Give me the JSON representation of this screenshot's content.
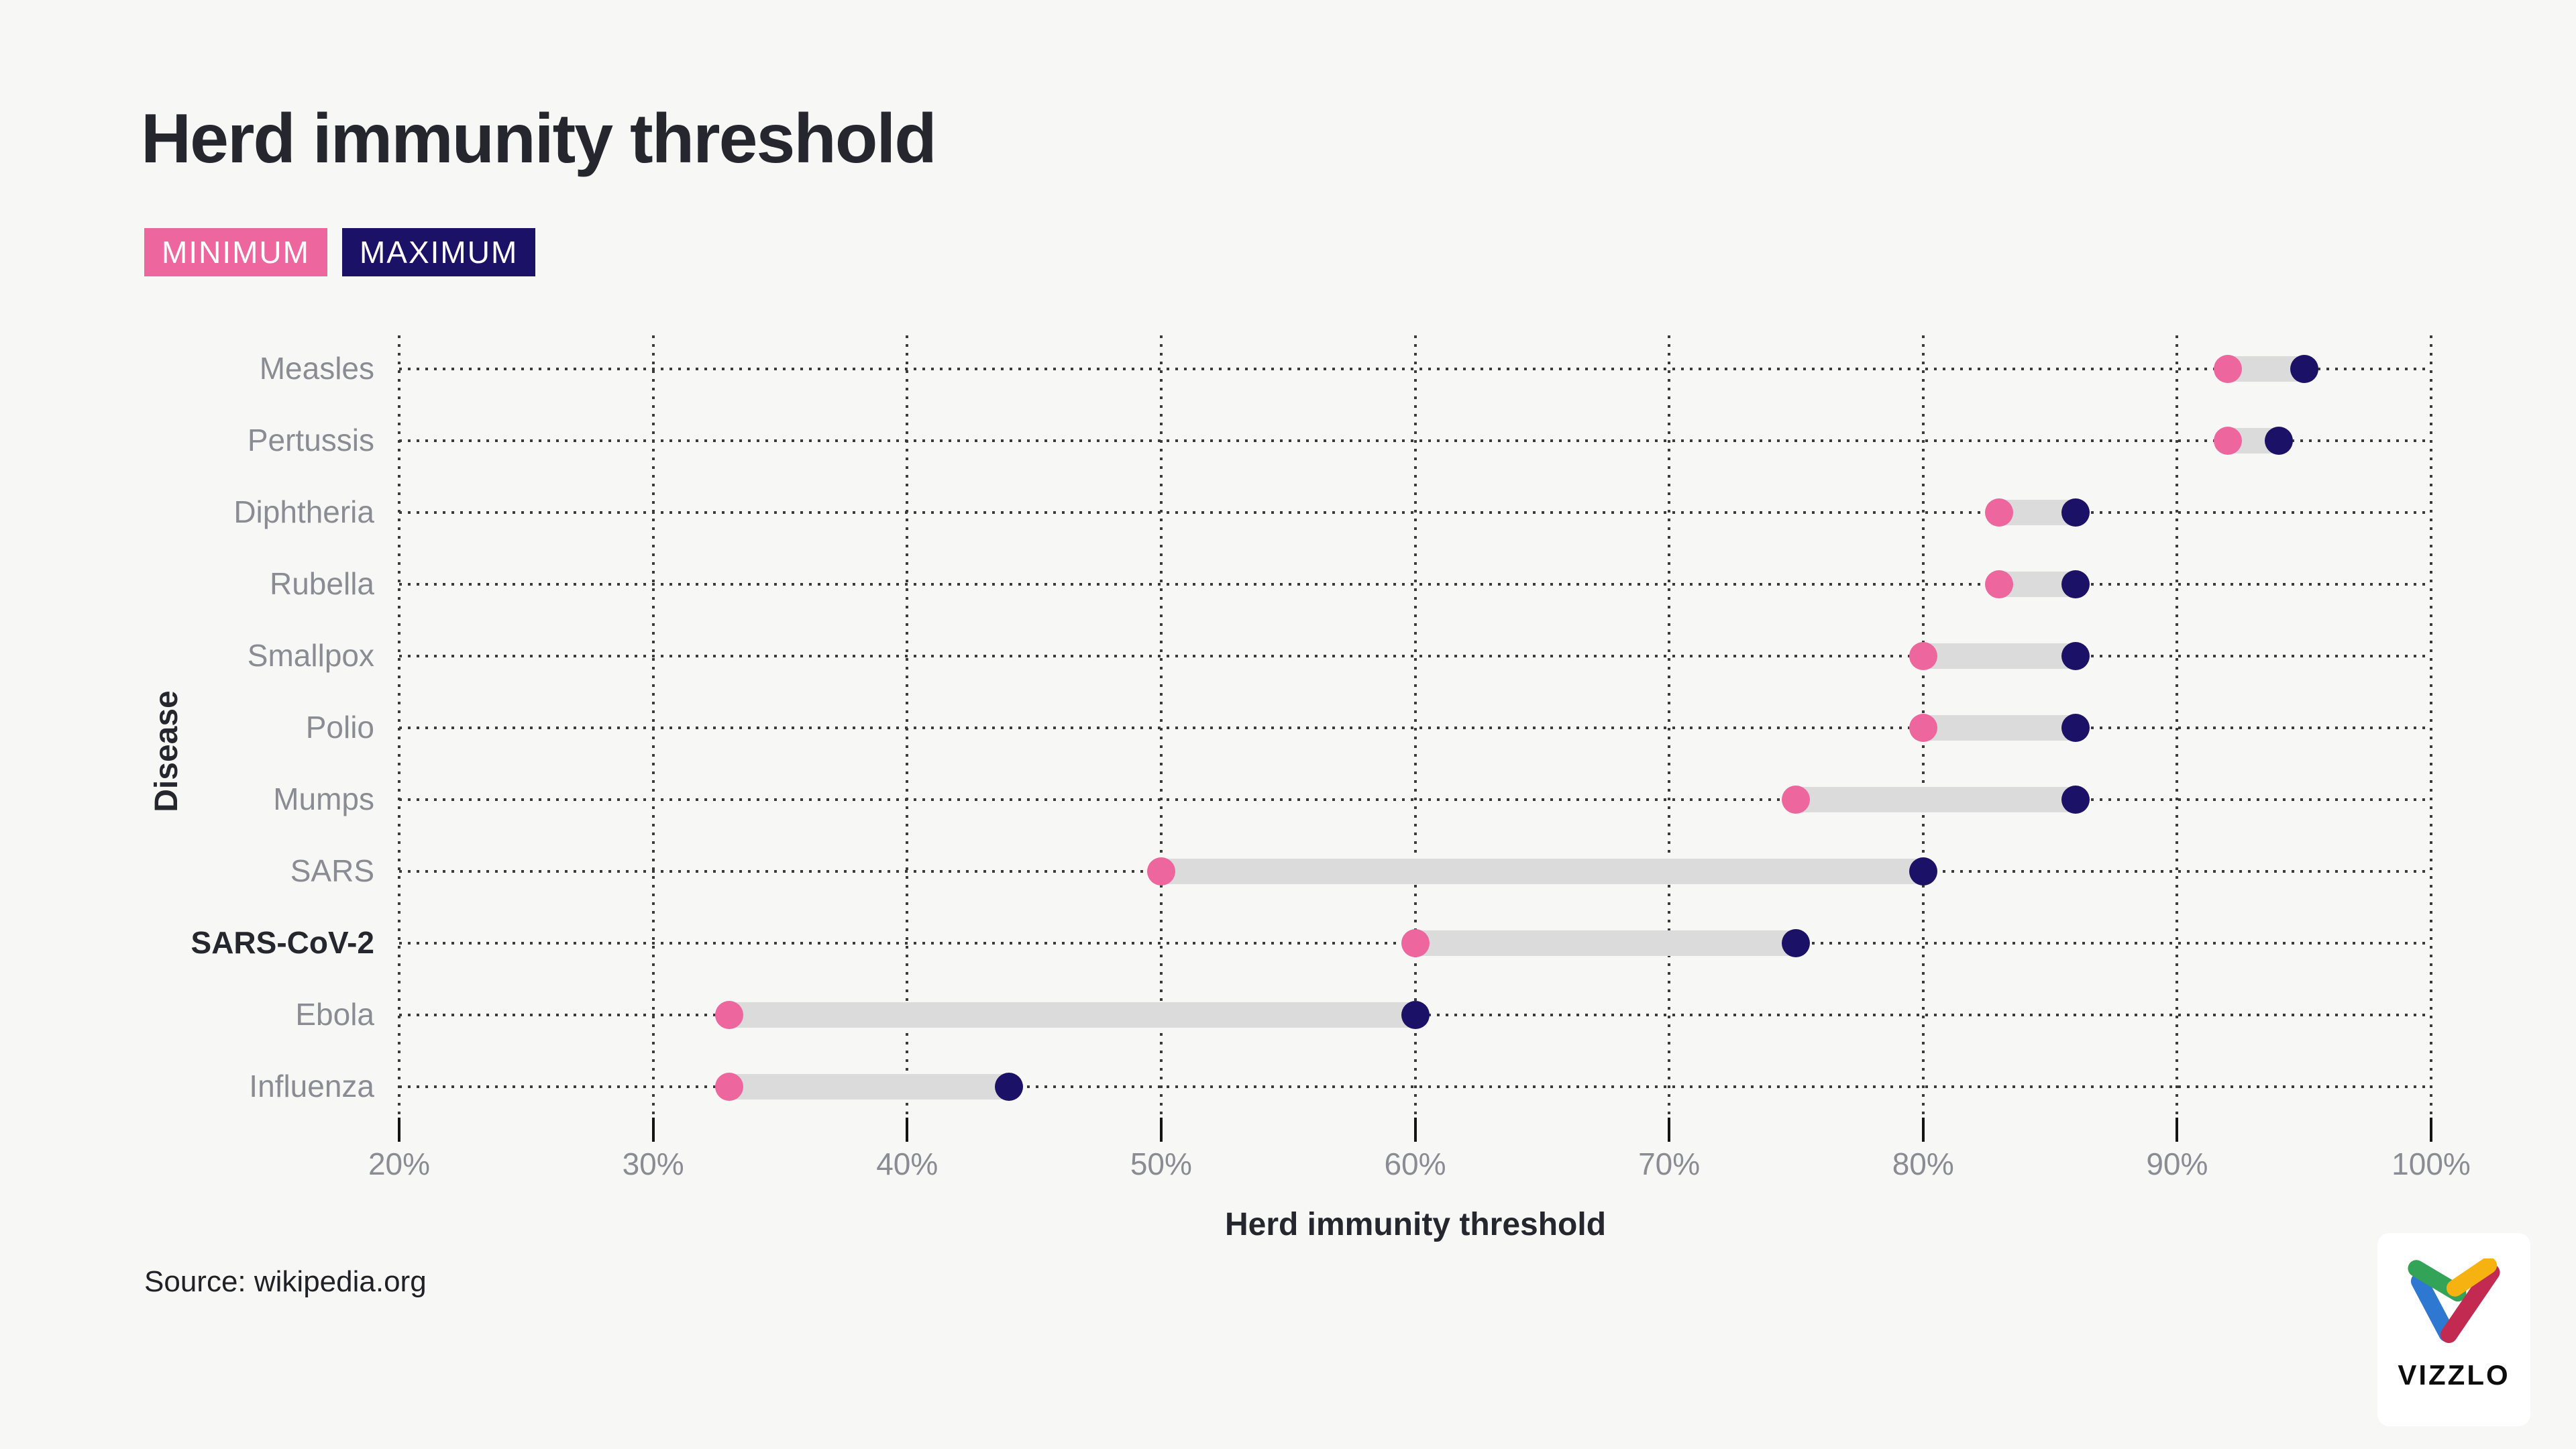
{
  "header": {
    "title": "Herd immunity threshold",
    "legend": [
      {
        "label": "MINIMUM",
        "color": "#ed669e"
      },
      {
        "label": "MAXIMUM",
        "color": "#1b1166"
      }
    ]
  },
  "chart_data": {
    "type": "dumbbell",
    "title": "Herd immunity threshold",
    "xlabel": "Herd immunity threshold",
    "ylabel": "Disease",
    "x_ticks": [
      "20%",
      "30%",
      "40%",
      "50%",
      "60%",
      "70%",
      "80%",
      "90%",
      "100%"
    ],
    "x_tick_values": [
      20,
      30,
      40,
      50,
      60,
      70,
      80,
      90,
      100
    ],
    "x_range": [
      20,
      100
    ],
    "grid": "dotted",
    "legend_position": "top-left",
    "series_names": [
      "MINIMUM",
      "MAXIMUM"
    ],
    "rows": [
      {
        "disease": "Measles",
        "min": 92,
        "max": 95,
        "emphasis": false
      },
      {
        "disease": "Pertussis",
        "min": 92,
        "max": 94,
        "emphasis": false
      },
      {
        "disease": "Diphtheria",
        "min": 83,
        "max": 86,
        "emphasis": false
      },
      {
        "disease": "Rubella",
        "min": 83,
        "max": 86,
        "emphasis": false
      },
      {
        "disease": "Smallpox",
        "min": 80,
        "max": 86,
        "emphasis": false
      },
      {
        "disease": "Polio",
        "min": 80,
        "max": 86,
        "emphasis": false
      },
      {
        "disease": "Mumps",
        "min": 75,
        "max": 86,
        "emphasis": false
      },
      {
        "disease": "SARS",
        "min": 50,
        "max": 80,
        "emphasis": false
      },
      {
        "disease": "SARS-CoV-2",
        "min": 60,
        "max": 75,
        "emphasis": true
      },
      {
        "disease": "Ebola",
        "min": 33,
        "max": 60,
        "emphasis": false
      },
      {
        "disease": "Influenza",
        "min": 33,
        "max": 44,
        "emphasis": false
      }
    ],
    "colors": {
      "min_dot": "#ed669e",
      "max_dot": "#1b1166",
      "connector": "#dbdbdb",
      "grid": "#3b3b3b",
      "label_gray": "#8b8b94",
      "emphasis_text": "#26262e",
      "background": "#f7f7f5"
    }
  },
  "footer": {
    "source": "Source: wikipedia.org",
    "logo_text": "VIZZLO"
  }
}
